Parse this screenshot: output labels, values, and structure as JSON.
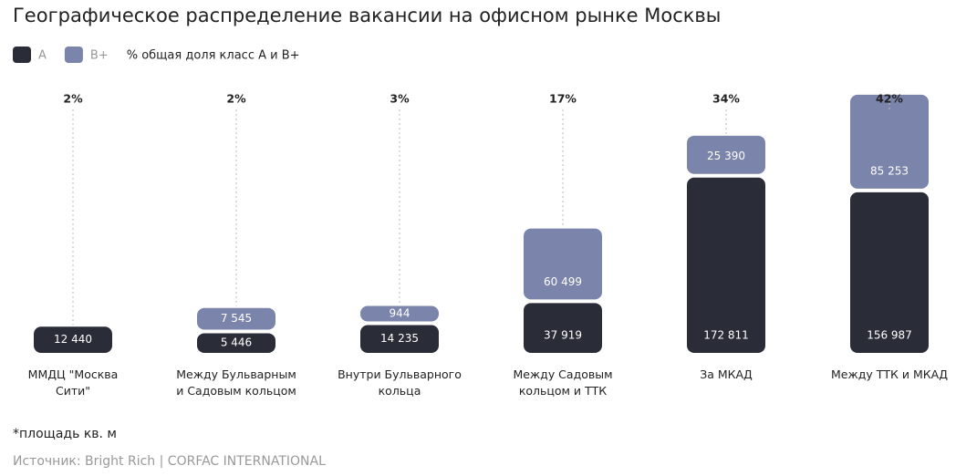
{
  "chart_data": {
    "type": "stacked_bar",
    "title": "Географическое распределение вакансии на офисном рынке Москвы",
    "categories": [
      "ММДЦ \"Москва\nСити\"",
      "Между Бульварным\nи Садовым кольцом",
      "Внутри Бульварного\nкольца",
      "Между Садовым\nкольцом и ТТК",
      "За МКАД",
      "Между ТТК и МКАД"
    ],
    "series": [
      {
        "name": "А",
        "color": "#2a2d37",
        "values": [
          12440,
          5446,
          14235,
          37919,
          172811,
          156987
        ],
        "value_labels": [
          "12 440",
          "5 446",
          "14 235",
          "37 919",
          "172 811",
          "156 987"
        ]
      },
      {
        "name": "B+",
        "color": "#7b84ab",
        "values": [
          null,
          7545,
          944,
          60499,
          25390,
          85253
        ],
        "value_labels": [
          null,
          "7 545",
          "944",
          "60 499",
          "25 390",
          "85 253"
        ]
      }
    ],
    "share": {
      "name": "% общая доля класс А и В+",
      "values": [
        2,
        2,
        3,
        17,
        34,
        42
      ],
      "value_labels": [
        "2%",
        "2%",
        "3%",
        "17%",
        "34%",
        "42%"
      ]
    },
    "footnote": "*площадь кв. м",
    "source": "Источник: Bright Rich | CORFAC INTERNATIONAL"
  }
}
